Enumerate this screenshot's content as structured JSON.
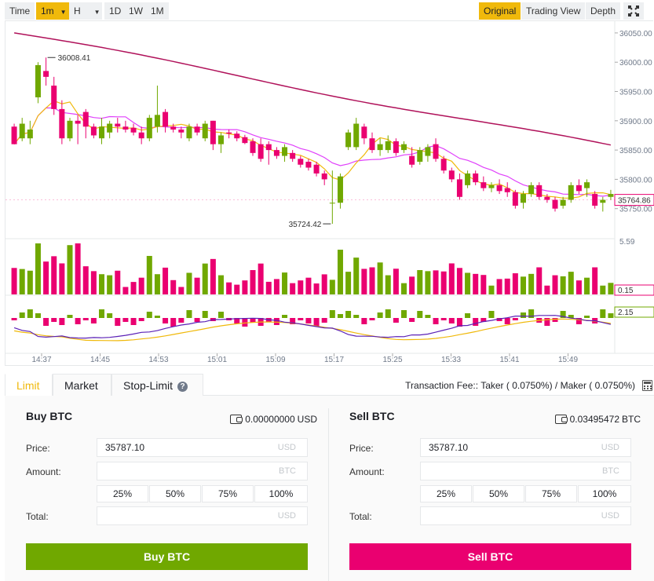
{
  "toolbar": {
    "time_label": "Time",
    "intervals": [
      "1m",
      "H",
      "1D",
      "1W",
      "1M"
    ],
    "active_interval": "1m",
    "views": [
      "Original",
      "Trading View",
      "Depth"
    ],
    "active_view": "Original"
  },
  "chart_data": {
    "type": "candlestick",
    "x_ticks": [
      "14:37",
      "14:45",
      "14:53",
      "15:01",
      "15:09",
      "15:17",
      "15:25",
      "15:33",
      "15:41",
      "15:49"
    ],
    "price_axis": [
      "36050.00",
      "36000.00",
      "35950.00",
      "35900.00",
      "35850.00",
      "35800.00",
      "35750.00"
    ],
    "ylim": [
      35700,
      36070
    ],
    "high_annotation": "36008.41",
    "low_annotation": "35724.42",
    "last_price": "35764.86",
    "volume_axis_max": "5.59",
    "volume_last": "0.15",
    "macd_last": "2.15",
    "colors": {
      "up": "#70a800",
      "down": "#ea0070",
      "ma_short": "#f0b90b",
      "ma_mid": "#e040fb",
      "ma_long": "#b0125a",
      "dif": "#5b21b6"
    },
    "candles": [
      [
        35890,
        35895,
        35860,
        35860
      ],
      [
        35870,
        35905,
        35865,
        35895
      ],
      [
        35870,
        35900,
        35860,
        35885
      ],
      [
        35940,
        36000,
        35930,
        35995
      ],
      [
        35985,
        36008,
        35960,
        35975
      ],
      [
        35960,
        35975,
        35910,
        35920
      ],
      [
        35920,
        35935,
        35860,
        35870
      ],
      [
        35870,
        35905,
        35865,
        35900
      ],
      [
        35900,
        35910,
        35860,
        35895
      ],
      [
        35915,
        35920,
        35870,
        35890
      ],
      [
        35890,
        35895,
        35870,
        35875
      ],
      [
        35870,
        35905,
        35860,
        35890
      ],
      [
        35880,
        35900,
        35870,
        35895
      ],
      [
        35895,
        35905,
        35880,
        35890
      ],
      [
        35890,
        35900,
        35880,
        35885
      ],
      [
        35888,
        35895,
        35875,
        35880
      ],
      [
        35880,
        35890,
        35860,
        35870
      ],
      [
        35870,
        35910,
        35865,
        35905
      ],
      [
        35890,
        35960,
        35880,
        35910
      ],
      [
        35915,
        35920,
        35880,
        35890
      ],
      [
        35890,
        35895,
        35880,
        35885
      ],
      [
        35885,
        35890,
        35870,
        35880
      ],
      [
        35870,
        35895,
        35865,
        35890
      ],
      [
        35890,
        35895,
        35875,
        35880
      ],
      [
        35870,
        35900,
        35865,
        35895
      ],
      [
        35900,
        35900,
        35850,
        35860
      ],
      [
        35860,
        35880,
        35845,
        35875
      ],
      [
        35880,
        35885,
        35870,
        35878
      ],
      [
        35878,
        35882,
        35865,
        35870
      ],
      [
        35872,
        35876,
        35860,
        35862
      ],
      [
        35865,
        35870,
        35840,
        35845
      ],
      [
        35860,
        35870,
        35830,
        35835
      ],
      [
        35860,
        35865,
        35825,
        35850
      ],
      [
        35850,
        35855,
        35835,
        35840
      ],
      [
        35840,
        35860,
        35830,
        35855
      ],
      [
        35845,
        35850,
        35830,
        35835
      ],
      [
        35835,
        35840,
        35820,
        35825
      ],
      [
        35830,
        35835,
        35815,
        35820
      ],
      [
        35825,
        35830,
        35805,
        35810
      ],
      [
        35810,
        35815,
        35790,
        35800
      ],
      [
        35760,
        35815,
        35724,
        35760
      ],
      [
        35760,
        35810,
        35750,
        35805
      ],
      [
        35855,
        35885,
        35850,
        35880
      ],
      [
        35855,
        35905,
        35850,
        35895
      ],
      [
        35890,
        35895,
        35860,
        35870
      ],
      [
        35870,
        35880,
        35845,
        35850
      ],
      [
        35850,
        35870,
        35840,
        35860
      ],
      [
        35850,
        35875,
        35845,
        35865
      ],
      [
        35865,
        35870,
        35840,
        35845
      ],
      [
        35850,
        35865,
        35845,
        35860
      ],
      [
        35840,
        35855,
        35820,
        35825
      ],
      [
        35830,
        35855,
        35825,
        35850
      ],
      [
        35840,
        35860,
        35830,
        35855
      ],
      [
        35860,
        35870,
        35830,
        35835
      ],
      [
        35835,
        35840,
        35810,
        35815
      ],
      [
        35815,
        35820,
        35795,
        35800
      ],
      [
        35800,
        35810,
        35765,
        35770
      ],
      [
        35790,
        35815,
        35785,
        35810
      ],
      [
        35810,
        35815,
        35790,
        35795
      ],
      [
        35795,
        35805,
        35780,
        35785
      ],
      [
        35785,
        35795,
        35778,
        35790
      ],
      [
        35790,
        35800,
        35775,
        35780
      ],
      [
        35785,
        35795,
        35770,
        35778
      ],
      [
        35778,
        35782,
        35750,
        35755
      ],
      [
        35760,
        35780,
        35750,
        35775
      ],
      [
        35775,
        35795,
        35770,
        35790
      ],
      [
        35790,
        35795,
        35765,
        35770
      ],
      [
        35770,
        35775,
        35760,
        35765
      ],
      [
        35765,
        35770,
        35745,
        35750
      ],
      [
        35755,
        35770,
        35750,
        35765
      ],
      [
        35765,
        35795,
        35760,
        35790
      ],
      [
        35790,
        35800,
        35775,
        35780
      ],
      [
        35785,
        35800,
        35770,
        35795
      ],
      [
        35775,
        35780,
        35750,
        35755
      ],
      [
        35760,
        35770,
        35745,
        35765
      ],
      [
        35770,
        35782,
        35765,
        35775
      ]
    ]
  },
  "order_tabs": [
    "Limit",
    "Market",
    "Stop-Limit"
  ],
  "active_tab": "Limit",
  "fee": {
    "label": "Transaction Fee:: Taker",
    "taker": "( 0.0750%)",
    "sep": "/",
    "maker_label": "Maker",
    "maker": "( 0.0750%)"
  },
  "buy": {
    "title": "Buy BTC",
    "balance_value": "0.00000000",
    "balance_unit": "USD",
    "price_label": "Price:",
    "price_value": "35787.10",
    "price_unit": "USD",
    "amount_label": "Amount:",
    "amount_unit": "BTC",
    "percents": [
      "25%",
      "50%",
      "75%",
      "100%"
    ],
    "total_label": "Total:",
    "total_unit": "USD",
    "button": "Buy BTC",
    "color": "#70a800"
  },
  "sell": {
    "title": "Sell BTC",
    "balance_value": "0.03495472",
    "balance_unit": "BTC",
    "price_label": "Price:",
    "price_value": "35787.10",
    "price_unit": "USD",
    "amount_label": "Amount:",
    "amount_unit": "BTC",
    "percents": [
      "25%",
      "50%",
      "75%",
      "100%"
    ],
    "total_label": "Total:",
    "total_unit": "USD",
    "button": "Sell BTC",
    "color": "#ea0070"
  }
}
